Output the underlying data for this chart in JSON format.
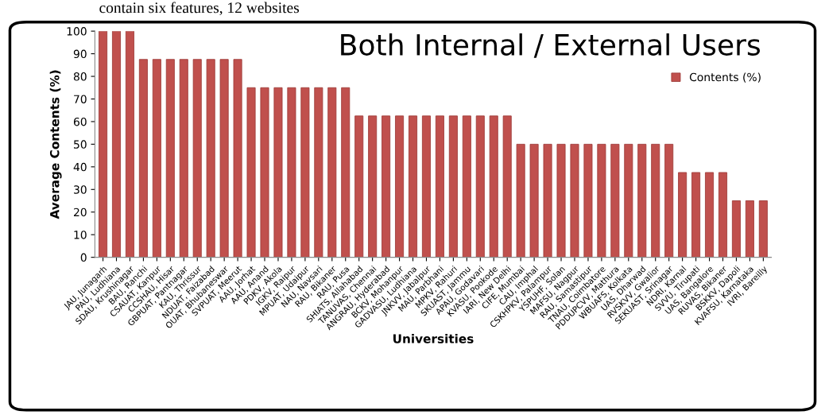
{
  "chart_data": {
    "type": "bar",
    "title": "Both Internal / External Users",
    "xlabel": "Universities",
    "ylabel": "Average Contents (%)",
    "annotations": [
      "contain six features, 12 websites"
    ],
    "categories": [
      "JAU, Junagarh",
      "PAU, Ludhiana",
      "SDAU, Krushinagar",
      "BAU, Ranchi",
      "CSAUAT, Kanpur",
      "CCSHAU, Hisar",
      "GBPUAT, Pantnagar",
      "KAU, Thrissur",
      "NDUAT, Faizabad",
      "OUAT, Bhubaneswar",
      "SVPUAT, Meerut",
      "AAU, Jorhat",
      "AAU, Anand",
      "PDKV, Akola",
      "IGKV, Raipur",
      "MPUAT, Udaipur",
      "NAU, Navsari",
      "RAU, Bikaner",
      "RAU, Pusa",
      "SHIATS, Allahabad",
      "TANUVAS, Chennai",
      "ANGRAU, Hyderabad",
      "BCKV, Mohanpur",
      "GADVASU, Ludhiana",
      "JNKVV, Jabalpur",
      "MAU, Parbhani",
      "MPKV, Rahuri",
      "SKUAST, Jammu",
      "APAU, Godavari",
      "KVASU, Pookode",
      "IARI, New Delhi",
      "CIFE, Mumbai",
      "CAU, Imphal",
      "CSKHPKV, Palampur",
      "YSPUHF, Solan",
      "MAFSU, Nagpur",
      "RAU, Samastipur",
      "TNAU, Coimbatore",
      "PDDUPCVV, Mathura",
      "WBUAFS, Kolkata",
      "UAS, Dharwad",
      "RVSKVV, Gwalior",
      "SEKUAST, Srinagar",
      "NDRI, Karnal",
      "SVVU, Tirupati",
      "UAS, Bangalore",
      "RUVAS, Bikaner",
      "BSKKV, Dapoli",
      "KVAFSU, Karnataka",
      "IVRI, Bareilly"
    ],
    "series": [
      {
        "name": "Contents (%)",
        "color": "#c0504d",
        "values": [
          100,
          100,
          100,
          87.5,
          87.5,
          87.5,
          87.5,
          87.5,
          87.5,
          87.5,
          87.5,
          75,
          75,
          75,
          75,
          75,
          75,
          75,
          75,
          62.5,
          62.5,
          62.5,
          62.5,
          62.5,
          62.5,
          62.5,
          62.5,
          62.5,
          62.5,
          62.5,
          62.5,
          50,
          50,
          50,
          50,
          50,
          50,
          50,
          50,
          50,
          50,
          50,
          50,
          37.5,
          37.5,
          37.5,
          37.5,
          25,
          25,
          25
        ]
      }
    ],
    "ylim": [
      0,
      100
    ],
    "yticks": [
      0,
      10,
      20,
      30,
      40,
      50,
      60,
      70,
      80,
      90,
      100
    ],
    "grid": false,
    "legend": "top right"
  }
}
